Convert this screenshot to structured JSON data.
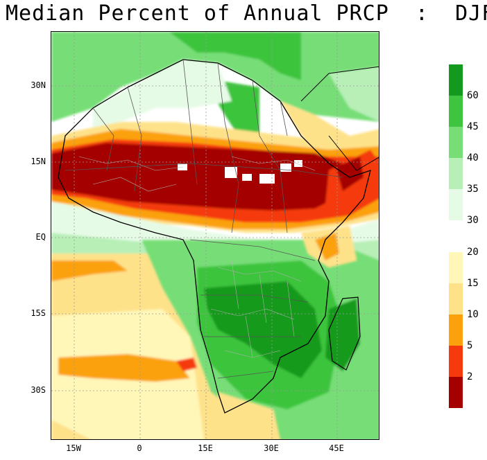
{
  "title": "Median Percent of Annual PRCP  :  DJF",
  "axes": {
    "lat_labels": [
      "30N",
      "15N",
      "EQ",
      "15S",
      "30S"
    ],
    "lon_labels": [
      "15W",
      "0",
      "15E",
      "30E",
      "45E"
    ]
  },
  "legend": {
    "upper": {
      "labels": [
        "60",
        "45",
        "40",
        "35",
        "30"
      ],
      "colors": [
        "#139a1e",
        "#3ec43e",
        "#77de77",
        "#b7efb7",
        "#e6fbe6"
      ]
    },
    "lower": {
      "labels": [
        "20",
        "15",
        "10",
        "5",
        "2"
      ],
      "colors": [
        "#fff7b8",
        "#fee28a",
        "#fba10e",
        "#f53a0e",
        "#a40000"
      ]
    }
  },
  "colors": {
    "frame": "#000000",
    "grid": "#9a9a9a",
    "boundaries": "#b0b0b0",
    "background": "#ffffff"
  }
}
